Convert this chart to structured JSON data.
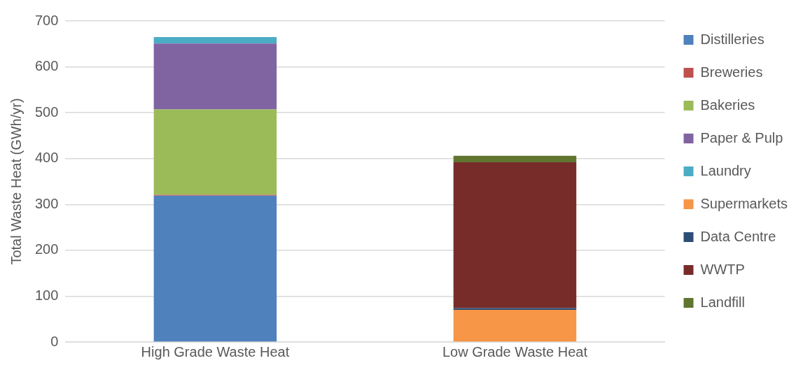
{
  "chart_data": {
    "type": "bar",
    "stacked": true,
    "ylabel": "Total Waste Heat (GWh/yr)",
    "categories": [
      "High Grade Waste Heat",
      "Low Grade Waste Heat"
    ],
    "series": [
      {
        "name": "Distilleries",
        "color": "#4f81bd",
        "values": [
          319,
          null
        ]
      },
      {
        "name": "Breweries",
        "color": "#c0504d",
        "values": [
          2,
          null
        ]
      },
      {
        "name": "Bakeries",
        "color": "#9bbb59",
        "values": [
          186,
          null
        ]
      },
      {
        "name": "Paper & Pulp",
        "color": "#8064a2",
        "values": [
          144,
          null
        ]
      },
      {
        "name": "Laundry",
        "color": "#4bacc6",
        "values": [
          14,
          null
        ]
      },
      {
        "name": "Supermarkets",
        "color": "#f79646",
        "values": [
          null,
          70
        ]
      },
      {
        "name": "Data Centre",
        "color": "#2c4d75",
        "values": [
          null,
          4
        ]
      },
      {
        "name": "WWTP",
        "color": "#772c2a",
        "values": [
          null,
          318
        ]
      },
      {
        "name": "Landfill",
        "color": "#5f7530",
        "values": [
          null,
          14
        ]
      }
    ],
    "ylim": [
      0,
      700
    ],
    "yticks": [
      0,
      100,
      200,
      300,
      400,
      500,
      600,
      700
    ],
    "grid": "y",
    "legend": "right"
  }
}
